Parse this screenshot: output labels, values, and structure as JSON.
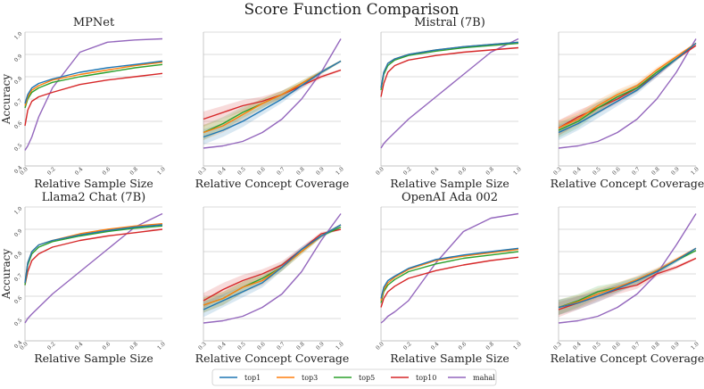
{
  "figure": {
    "title": "Score Function Comparison",
    "ylabel": "Accuracy"
  },
  "colors": {
    "top1": "#1f77b4",
    "top3": "#ff7f0e",
    "top5": "#2ca02c",
    "top10": "#d62728",
    "mahal": "#9467bd",
    "grid": "#cfcfcf",
    "axis": "#bbbbbb"
  },
  "legend": [
    "top1",
    "top3",
    "top5",
    "top10",
    "mahal"
  ],
  "chart_data": [
    {
      "type": "line",
      "title": "MPNet",
      "xlabel": "Relative Sample Size",
      "ylabel": "Accuracy",
      "xlim": [
        0,
        1
      ],
      "ylim": [
        0.4,
        1.0
      ],
      "xticks": [
        "0.0",
        "0.2",
        "0.4",
        "0.6",
        "0.8",
        "1.0"
      ],
      "yticks": [
        "0.4",
        "0.5",
        "0.6",
        "0.7",
        "0.8",
        "0.9",
        "1.0"
      ],
      "x": [
        0,
        0.02,
        0.05,
        0.1,
        0.2,
        0.4,
        0.6,
        0.8,
        1.0
      ],
      "series": [
        {
          "name": "top1",
          "values": [
            0.68,
            0.72,
            0.75,
            0.77,
            0.79,
            0.82,
            0.84,
            0.855,
            0.87
          ]
        },
        {
          "name": "top3",
          "values": [
            0.67,
            0.71,
            0.74,
            0.76,
            0.785,
            0.81,
            0.83,
            0.85,
            0.865
          ]
        },
        {
          "name": "top5",
          "values": [
            0.66,
            0.7,
            0.73,
            0.75,
            0.775,
            0.8,
            0.82,
            0.84,
            0.855
          ]
        },
        {
          "name": "top10",
          "values": [
            0.58,
            0.65,
            0.69,
            0.71,
            0.73,
            0.765,
            0.785,
            0.8,
            0.815
          ]
        },
        {
          "name": "mahal",
          "values": [
            0.47,
            0.49,
            0.53,
            0.62,
            0.75,
            0.91,
            0.955,
            0.965,
            0.97
          ]
        }
      ]
    },
    {
      "type": "line",
      "title": "",
      "xlabel": "Relative Concept Coverage",
      "ylabel": "",
      "xlim": [
        0.3,
        1
      ],
      "ylim": [
        0.4,
        1.0
      ],
      "xticks": [
        "0.3",
        "0.4",
        "0.5",
        "0.6",
        "0.7",
        "0.8",
        "0.9",
        "1.0"
      ],
      "yticks": [],
      "x": [
        0.3,
        0.4,
        0.5,
        0.6,
        0.7,
        0.8,
        0.9,
        1.0
      ],
      "series": [
        {
          "name": "top1",
          "values": [
            0.53,
            0.56,
            0.6,
            0.65,
            0.7,
            0.76,
            0.82,
            0.87
          ]
        },
        {
          "name": "top3",
          "values": [
            0.55,
            0.58,
            0.63,
            0.68,
            0.72,
            0.77,
            0.82,
            0.87
          ]
        },
        {
          "name": "top5",
          "values": [
            0.55,
            0.59,
            0.64,
            0.68,
            0.72,
            0.77,
            0.82,
            0.87
          ]
        },
        {
          "name": "top10",
          "values": [
            0.61,
            0.64,
            0.67,
            0.69,
            0.72,
            0.76,
            0.8,
            0.83
          ]
        },
        {
          "name": "mahal",
          "values": [
            0.48,
            0.49,
            0.51,
            0.55,
            0.61,
            0.7,
            0.82,
            0.97
          ]
        }
      ]
    },
    {
      "type": "line",
      "title": "Mistral (7B)",
      "xlabel": "Relative Sample Size",
      "ylabel": "",
      "xlim": [
        0,
        1
      ],
      "ylim": [
        0.4,
        1.0
      ],
      "xticks": [
        "0.0",
        "0.2",
        "0.4",
        "0.6",
        "0.8",
        "1.0"
      ],
      "yticks": [],
      "x": [
        0,
        0.02,
        0.05,
        0.1,
        0.2,
        0.4,
        0.6,
        0.8,
        1.0
      ],
      "series": [
        {
          "name": "top1",
          "values": [
            0.75,
            0.82,
            0.86,
            0.88,
            0.9,
            0.92,
            0.935,
            0.945,
            0.955
          ]
        },
        {
          "name": "top3",
          "values": [
            0.75,
            0.82,
            0.86,
            0.88,
            0.9,
            0.92,
            0.935,
            0.945,
            0.955
          ]
        },
        {
          "name": "top5",
          "values": [
            0.74,
            0.81,
            0.85,
            0.875,
            0.895,
            0.915,
            0.93,
            0.94,
            0.95
          ]
        },
        {
          "name": "top10",
          "values": [
            0.71,
            0.77,
            0.82,
            0.85,
            0.875,
            0.895,
            0.91,
            0.92,
            0.93
          ]
        },
        {
          "name": "mahal",
          "values": [
            0.48,
            0.5,
            0.52,
            0.55,
            0.61,
            0.71,
            0.81,
            0.91,
            0.97
          ]
        }
      ]
    },
    {
      "type": "line",
      "title": "",
      "xlabel": "Relative Concept Coverage",
      "ylabel": "",
      "xlim": [
        0.3,
        1
      ],
      "ylim": [
        0.4,
        1.0
      ],
      "xticks": [
        "0.3",
        "0.4",
        "0.5",
        "0.6",
        "0.7",
        "0.8",
        "0.9",
        "1.0"
      ],
      "yticks": [],
      "x": [
        0.3,
        0.4,
        0.5,
        0.6,
        0.7,
        0.8,
        0.9,
        1.0
      ],
      "series": [
        {
          "name": "top1",
          "values": [
            0.55,
            0.59,
            0.64,
            0.69,
            0.74,
            0.81,
            0.88,
            0.95
          ]
        },
        {
          "name": "top3",
          "values": [
            0.57,
            0.61,
            0.67,
            0.72,
            0.76,
            0.83,
            0.89,
            0.95
          ]
        },
        {
          "name": "top5",
          "values": [
            0.56,
            0.6,
            0.66,
            0.71,
            0.75,
            0.82,
            0.88,
            0.95
          ]
        },
        {
          "name": "top10",
          "values": [
            0.57,
            0.62,
            0.66,
            0.7,
            0.75,
            0.81,
            0.88,
            0.94
          ]
        },
        {
          "name": "mahal",
          "values": [
            0.48,
            0.49,
            0.51,
            0.55,
            0.61,
            0.7,
            0.82,
            0.97
          ]
        }
      ]
    },
    {
      "type": "line",
      "title": "Llama2 Chat (7B)",
      "xlabel": "Relative Sample Size",
      "ylabel": "Accuracy",
      "xlim": [
        0,
        1
      ],
      "ylim": [
        0.4,
        1.0
      ],
      "xticks": [
        "0.0",
        "0.2",
        "0.4",
        "0.6",
        "0.8",
        "1.0"
      ],
      "yticks": [
        "0.4",
        "0.5",
        "0.6",
        "0.7",
        "0.8",
        "0.9",
        "1.0"
      ],
      "x": [
        0,
        0.02,
        0.05,
        0.1,
        0.2,
        0.4,
        0.6,
        0.8,
        1.0
      ],
      "series": [
        {
          "name": "top1",
          "values": [
            0.66,
            0.75,
            0.8,
            0.83,
            0.85,
            0.875,
            0.895,
            0.91,
            0.92
          ]
        },
        {
          "name": "top3",
          "values": [
            0.66,
            0.75,
            0.8,
            0.83,
            0.85,
            0.88,
            0.9,
            0.915,
            0.925
          ]
        },
        {
          "name": "top5",
          "values": [
            0.65,
            0.74,
            0.79,
            0.82,
            0.845,
            0.87,
            0.89,
            0.905,
            0.915
          ]
        },
        {
          "name": "top10",
          "values": [
            0.65,
            0.71,
            0.76,
            0.79,
            0.82,
            0.85,
            0.87,
            0.885,
            0.9
          ]
        },
        {
          "name": "mahal",
          "values": [
            0.48,
            0.5,
            0.52,
            0.55,
            0.61,
            0.71,
            0.81,
            0.91,
            0.97
          ]
        }
      ]
    },
    {
      "type": "line",
      "title": "",
      "xlabel": "Relative Concept Coverage",
      "ylabel": "",
      "xlim": [
        0.3,
        1
      ],
      "ylim": [
        0.4,
        1.0
      ],
      "xticks": [
        "0.3",
        "0.4",
        "0.5",
        "0.6",
        "0.7",
        "0.8",
        "0.9",
        "1.0"
      ],
      "yticks": [],
      "x": [
        0.3,
        0.4,
        0.5,
        0.6,
        0.7,
        0.8,
        0.9,
        1.0
      ],
      "series": [
        {
          "name": "top1",
          "values": [
            0.54,
            0.58,
            0.62,
            0.66,
            0.73,
            0.81,
            0.87,
            0.92
          ]
        },
        {
          "name": "top3",
          "values": [
            0.56,
            0.59,
            0.64,
            0.67,
            0.73,
            0.8,
            0.87,
            0.92
          ]
        },
        {
          "name": "top5",
          "values": [
            0.56,
            0.59,
            0.64,
            0.68,
            0.73,
            0.8,
            0.87,
            0.91
          ]
        },
        {
          "name": "top10",
          "values": [
            0.58,
            0.63,
            0.67,
            0.7,
            0.74,
            0.81,
            0.88,
            0.9
          ]
        },
        {
          "name": "mahal",
          "values": [
            0.48,
            0.49,
            0.51,
            0.55,
            0.61,
            0.71,
            0.85,
            0.97
          ]
        }
      ]
    },
    {
      "type": "line",
      "title": "OpenAI Ada 002",
      "xlabel": "Relative Sample Size",
      "ylabel": "",
      "xlim": [
        0,
        1
      ],
      "ylim": [
        0.4,
        1.0
      ],
      "xticks": [
        "0.0",
        "0.2",
        "0.4",
        "0.6",
        "0.8",
        "1.0"
      ],
      "yticks": [],
      "x": [
        0,
        0.02,
        0.05,
        0.1,
        0.2,
        0.4,
        0.6,
        0.8,
        1.0
      ],
      "series": [
        {
          "name": "top1",
          "values": [
            0.59,
            0.64,
            0.67,
            0.69,
            0.725,
            0.765,
            0.785,
            0.8,
            0.815
          ]
        },
        {
          "name": "top3",
          "values": [
            0.58,
            0.63,
            0.66,
            0.685,
            0.72,
            0.76,
            0.78,
            0.795,
            0.81
          ]
        },
        {
          "name": "top5",
          "values": [
            0.57,
            0.62,
            0.65,
            0.675,
            0.71,
            0.745,
            0.77,
            0.785,
            0.8
          ]
        },
        {
          "name": "top10",
          "values": [
            0.55,
            0.59,
            0.62,
            0.645,
            0.68,
            0.715,
            0.74,
            0.76,
            0.775
          ]
        },
        {
          "name": "mahal",
          "values": [
            0.48,
            0.49,
            0.51,
            0.53,
            0.58,
            0.75,
            0.89,
            0.95,
            0.97
          ]
        }
      ]
    },
    {
      "type": "line",
      "title": "",
      "xlabel": "Relative Concept Coverage",
      "ylabel": "",
      "xlim": [
        0.3,
        1
      ],
      "ylim": [
        0.4,
        1.0
      ],
      "xticks": [
        "0.3",
        "0.4",
        "0.5",
        "0.6",
        "0.7",
        "0.8",
        "0.9",
        "1.0"
      ],
      "yticks": [],
      "x": [
        0.3,
        0.4,
        0.5,
        0.6,
        0.7,
        0.8,
        0.9,
        1.0
      ],
      "series": [
        {
          "name": "top1",
          "values": [
            0.55,
            0.57,
            0.6,
            0.635,
            0.67,
            0.71,
            0.76,
            0.815
          ]
        },
        {
          "name": "top3",
          "values": [
            0.55,
            0.575,
            0.61,
            0.64,
            0.675,
            0.715,
            0.765,
            0.815
          ]
        },
        {
          "name": "top5",
          "values": [
            0.55,
            0.58,
            0.62,
            0.64,
            0.67,
            0.71,
            0.76,
            0.805
          ]
        },
        {
          "name": "top10",
          "values": [
            0.54,
            0.57,
            0.6,
            0.63,
            0.65,
            0.7,
            0.73,
            0.77
          ]
        },
        {
          "name": "mahal",
          "values": [
            0.48,
            0.49,
            0.51,
            0.55,
            0.61,
            0.7,
            0.83,
            0.97
          ]
        }
      ]
    }
  ]
}
